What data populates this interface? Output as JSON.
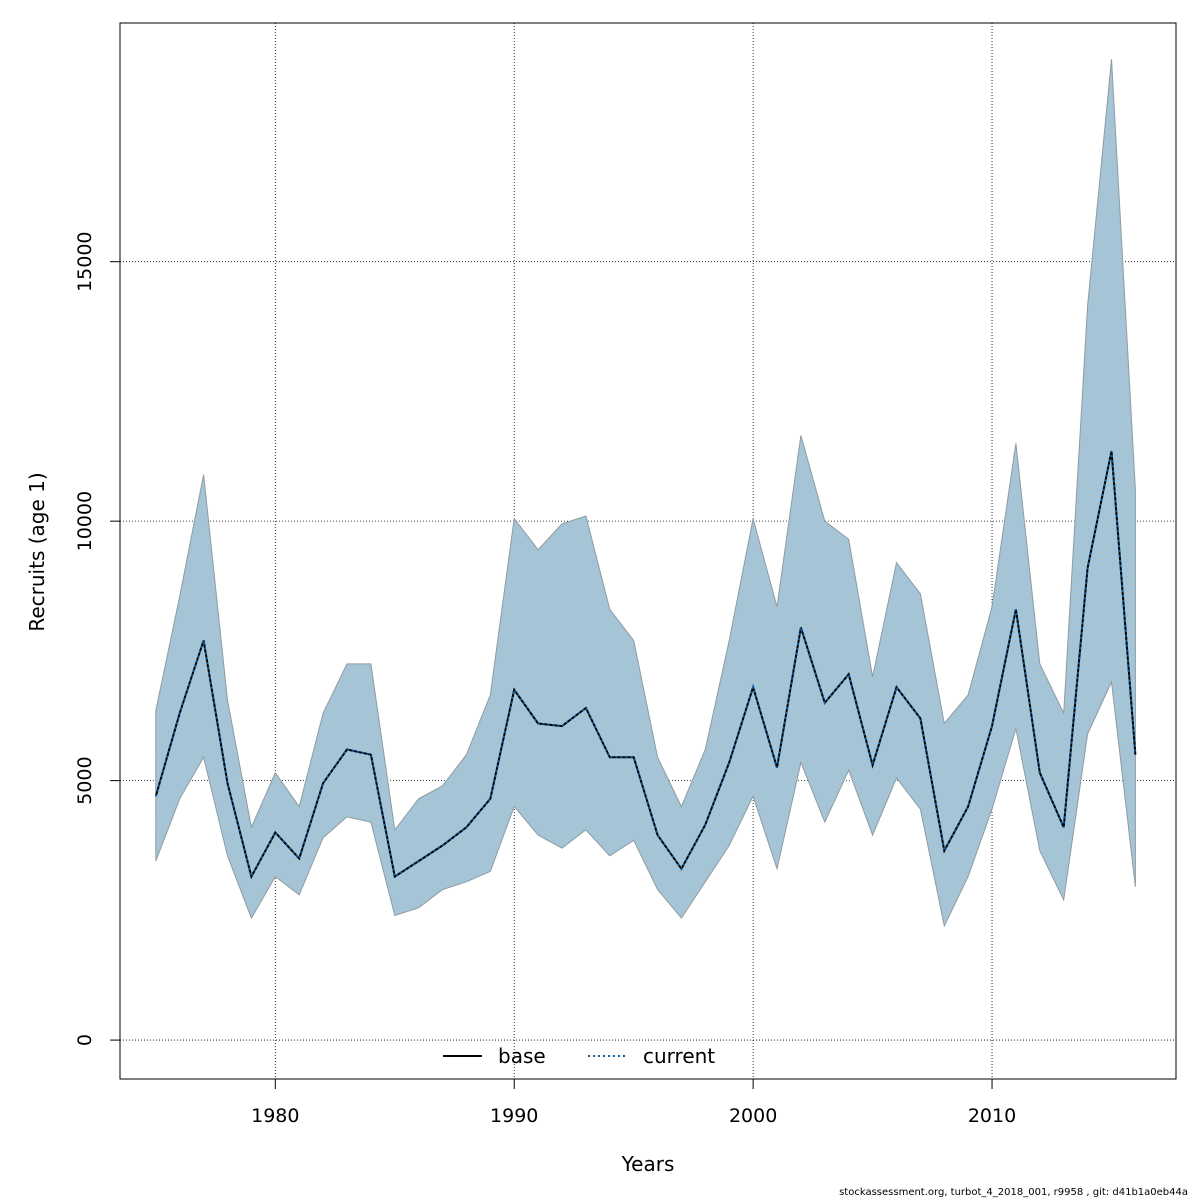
{
  "chart_data": {
    "type": "area",
    "xlabel": "Years",
    "ylabel": "Recruits (age 1)",
    "xlim": [
      1973.5,
      2017.7
    ],
    "ylim": [
      -750,
      19600
    ],
    "x_ticks": [
      1980,
      1990,
      2000,
      2010
    ],
    "y_ticks": [
      0,
      5000,
      10000,
      15000
    ],
    "grid": true,
    "legend_position": "bottom-center",
    "colors": {
      "band": "#a5c4d5",
      "band_edge": "#8f9ba3",
      "base": "#000000",
      "current": "#0b5fa5"
    },
    "x": [
      1975,
      1976,
      1977,
      1978,
      1979,
      1980,
      1981,
      1982,
      1983,
      1984,
      1985,
      1986,
      1987,
      1988,
      1989,
      1990,
      1991,
      1992,
      1993,
      1994,
      1995,
      1996,
      1997,
      1998,
      1999,
      2000,
      2001,
      2002,
      2003,
      2004,
      2005,
      2006,
      2007,
      2008,
      2009,
      2010,
      2011,
      2012,
      2013,
      2014,
      2015,
      2016
    ],
    "series": [
      {
        "name": "base",
        "style": "solid",
        "values": [
          4700,
          6300,
          7700,
          4950,
          3150,
          4000,
          3500,
          4950,
          5600,
          5500,
          3150,
          3450,
          3750,
          4100,
          4650,
          6750,
          6100,
          6050,
          6400,
          5450,
          5450,
          3950,
          3300,
          4150,
          5350,
          6800,
          5250,
          7950,
          6500,
          7050,
          5300,
          6800,
          6200,
          3650,
          4500,
          6050,
          8300,
          5150,
          4100,
          9100,
          11350,
          5500
        ]
      },
      {
        "name": "current",
        "style": "dotted",
        "values": [
          4700,
          6300,
          7700,
          4950,
          3150,
          4000,
          3500,
          4950,
          5600,
          5500,
          3150,
          3450,
          3750,
          4100,
          4650,
          6750,
          6100,
          6050,
          6400,
          5450,
          5450,
          3950,
          3300,
          4150,
          5350,
          6800,
          5250,
          7950,
          6500,
          7050,
          5300,
          6800,
          6200,
          3650,
          4500,
          6050,
          8300,
          5150,
          4100,
          9100,
          11350,
          5500
        ]
      }
    ],
    "band_upper": [
      6350,
      8550,
      10900,
      6550,
      4100,
      5150,
      4500,
      6300,
      7250,
      7250,
      4050,
      4650,
      4900,
      5500,
      6650,
      10050,
      9450,
      9950,
      10100,
      8300,
      7700,
      5450,
      4500,
      5600,
      7700,
      10050,
      8350,
      11650,
      10000,
      9650,
      7000,
      9200,
      8600,
      6100,
      6650,
      8350,
      11500,
      7250,
      6300,
      14150,
      18900,
      10600
    ],
    "band_lower": [
      3450,
      4650,
      5450,
      3550,
      2350,
      3150,
      2800,
      3900,
      4300,
      4200,
      2400,
      2550,
      2900,
      3050,
      3250,
      4500,
      3950,
      3700,
      4050,
      3550,
      3850,
      2900,
      2350,
      3050,
      3750,
      4700,
      3300,
      5350,
      4200,
      5200,
      3950,
      5050,
      4450,
      2200,
      3150,
      4450,
      6000,
      3650,
      2700,
      5900,
      6900,
      2950
    ]
  },
  "legend": {
    "items": [
      "base",
      "current"
    ]
  },
  "footer": "stockassessment.org, turbot_4_2018_001, r9958 , git: d41b1a0eb44a"
}
